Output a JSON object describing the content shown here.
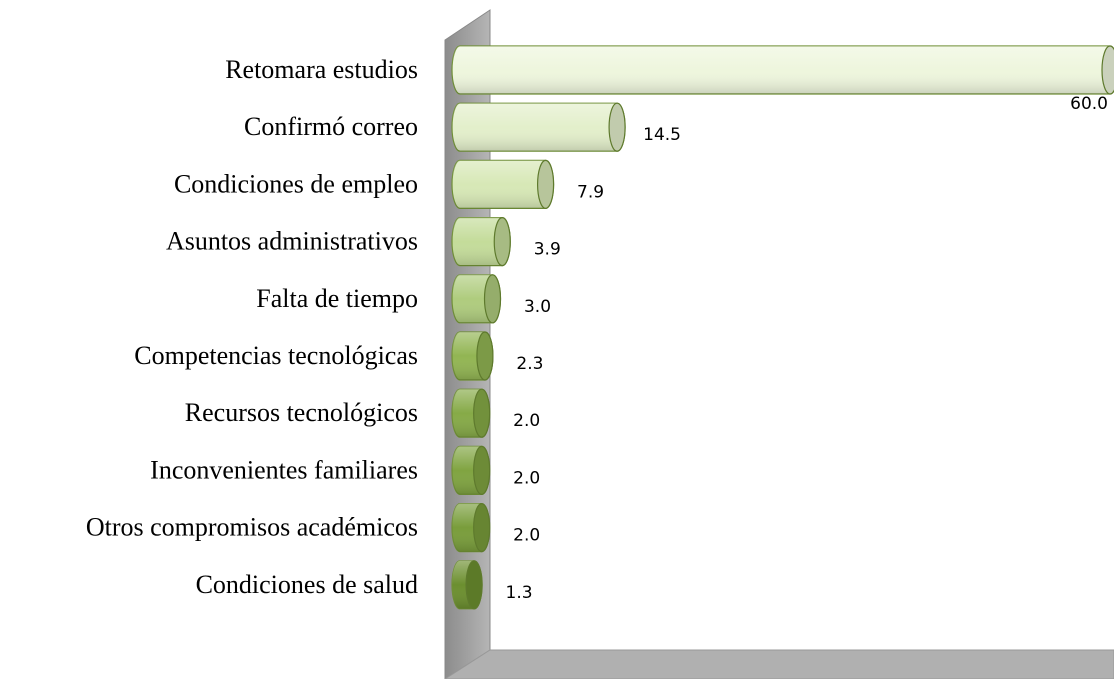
{
  "chart_data": {
    "type": "bar",
    "orientation": "horizontal",
    "categories": [
      "Retomara estudios",
      "Confirmó correo",
      "Condiciones de empleo",
      "Asuntos administrativos",
      "Falta de tiempo",
      "Competencias tecnológicas",
      "Recursos tecnológicos",
      "Inconvenientes familiares",
      "Otros compromisos académicos",
      "Condiciones de salud"
    ],
    "values": [
      60,
      14.5,
      7.9,
      3.9,
      3,
      2.3,
      2,
      2,
      2,
      1.3
    ],
    "value_labels": [
      "60.0",
      "14.5",
      "7.9",
      "3.9",
      "3.0",
      "2.3",
      "2.0",
      "2.0",
      "2.0",
      "1.3"
    ],
    "colors": [
      "#eef6dd",
      "#e3efcb",
      "#d7e8b6",
      "#c4dc9a",
      "#afcc7e",
      "#92b553",
      "#86aa47",
      "#80a441",
      "#799d3b",
      "#6c8f2f"
    ]
  }
}
